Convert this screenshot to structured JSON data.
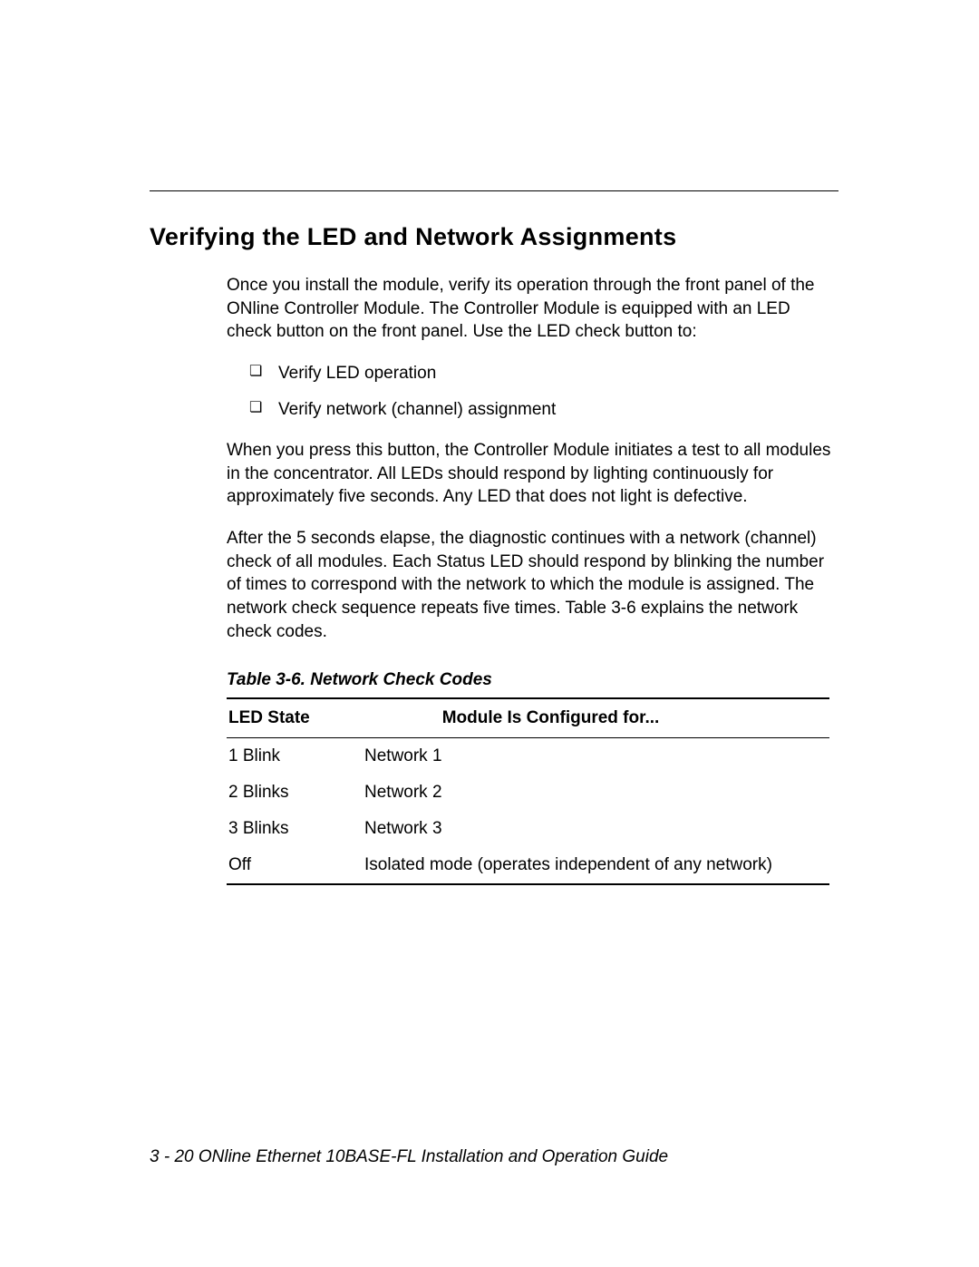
{
  "heading": "Verifying the LED and Network Assignments",
  "paragraphs": {
    "intro": "Once you install the module, verify its operation through the front panel of the ONline Controller Module. The Controller Module is equipped with an LED check button on the front panel. Use the LED check button to:",
    "afterList": "When you press this button, the Controller Module initiates a test to all modules in the concentrator. All LEDs should respond by lighting continuously for approximately five seconds. Any LED that does not light is defective.",
    "diagnostic": "After the 5 seconds elapse, the diagnostic continues with a network (channel) check of all modules. Each Status LED should respond by blinking the number of times to correspond with the network to which the module is assigned. The network check sequence repeats five times. Table 3-6 explains the network check codes."
  },
  "bullets": [
    "Verify LED operation",
    "Verify network (channel) assignment"
  ],
  "table": {
    "caption": "Table 3-6.  Network Check Codes",
    "columns": [
      "LED State",
      "Module Is Configured for..."
    ],
    "rows": [
      [
        "1 Blink",
        "Network 1"
      ],
      [
        "2 Blinks",
        "Network 2"
      ],
      [
        "3 Blinks",
        "Network 3"
      ],
      [
        "Off",
        "Isolated mode (operates independent of any network)"
      ]
    ]
  },
  "footer": "3 - 20  ONline Ethernet 10BASE-FL Installation and Operation Guide"
}
